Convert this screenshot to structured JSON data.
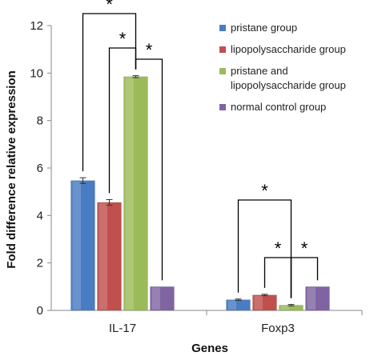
{
  "chart_data": {
    "type": "bar",
    "title": "",
    "xlabel": "Genes",
    "ylabel": "Fold difference relative expression",
    "ylim": [
      0,
      12
    ],
    "yticks": [
      0,
      2,
      4,
      6,
      8,
      10,
      12
    ],
    "grid": false,
    "legend_position": "top-right",
    "categories": [
      "IL-17",
      "Foxp3"
    ],
    "series": [
      {
        "name": "pristane group",
        "color": "#4a7cc4",
        "values": [
          5.47,
          0.45
        ],
        "errors": [
          0.12,
          0.03
        ]
      },
      {
        "name": "lipopolysaccharide group",
        "color": "#c0504d",
        "values": [
          4.55,
          0.65
        ],
        "errors": [
          0.12,
          0.03
        ]
      },
      {
        "name": "pristane and lipopolysaccharide group",
        "color": "#9bbb59",
        "values": [
          9.85,
          0.22
        ],
        "errors": [
          0.04,
          0.03
        ]
      },
      {
        "name": "normal control group",
        "color": "#8064a2",
        "values": [
          1.0,
          1.0
        ],
        "errors": [
          0.0,
          0.0
        ]
      }
    ],
    "annotations": [
      {
        "text": "*",
        "category": 0,
        "from_series": 0,
        "to_series": 2,
        "level": 3
      },
      {
        "text": "*",
        "category": 0,
        "from_series": 1,
        "to_series": 2,
        "level": 2
      },
      {
        "text": "*",
        "category": 0,
        "from_series": 2,
        "to_series": 3,
        "level": 1
      },
      {
        "text": "*",
        "category": 1,
        "from_series": 0,
        "to_series": 2,
        "level": 2
      },
      {
        "text": "*",
        "category": 1,
        "from_series": 1,
        "to_series": 2,
        "level": 1
      },
      {
        "text": "*",
        "category": 1,
        "from_series": 2,
        "to_series": 3,
        "level": 1
      }
    ]
  }
}
